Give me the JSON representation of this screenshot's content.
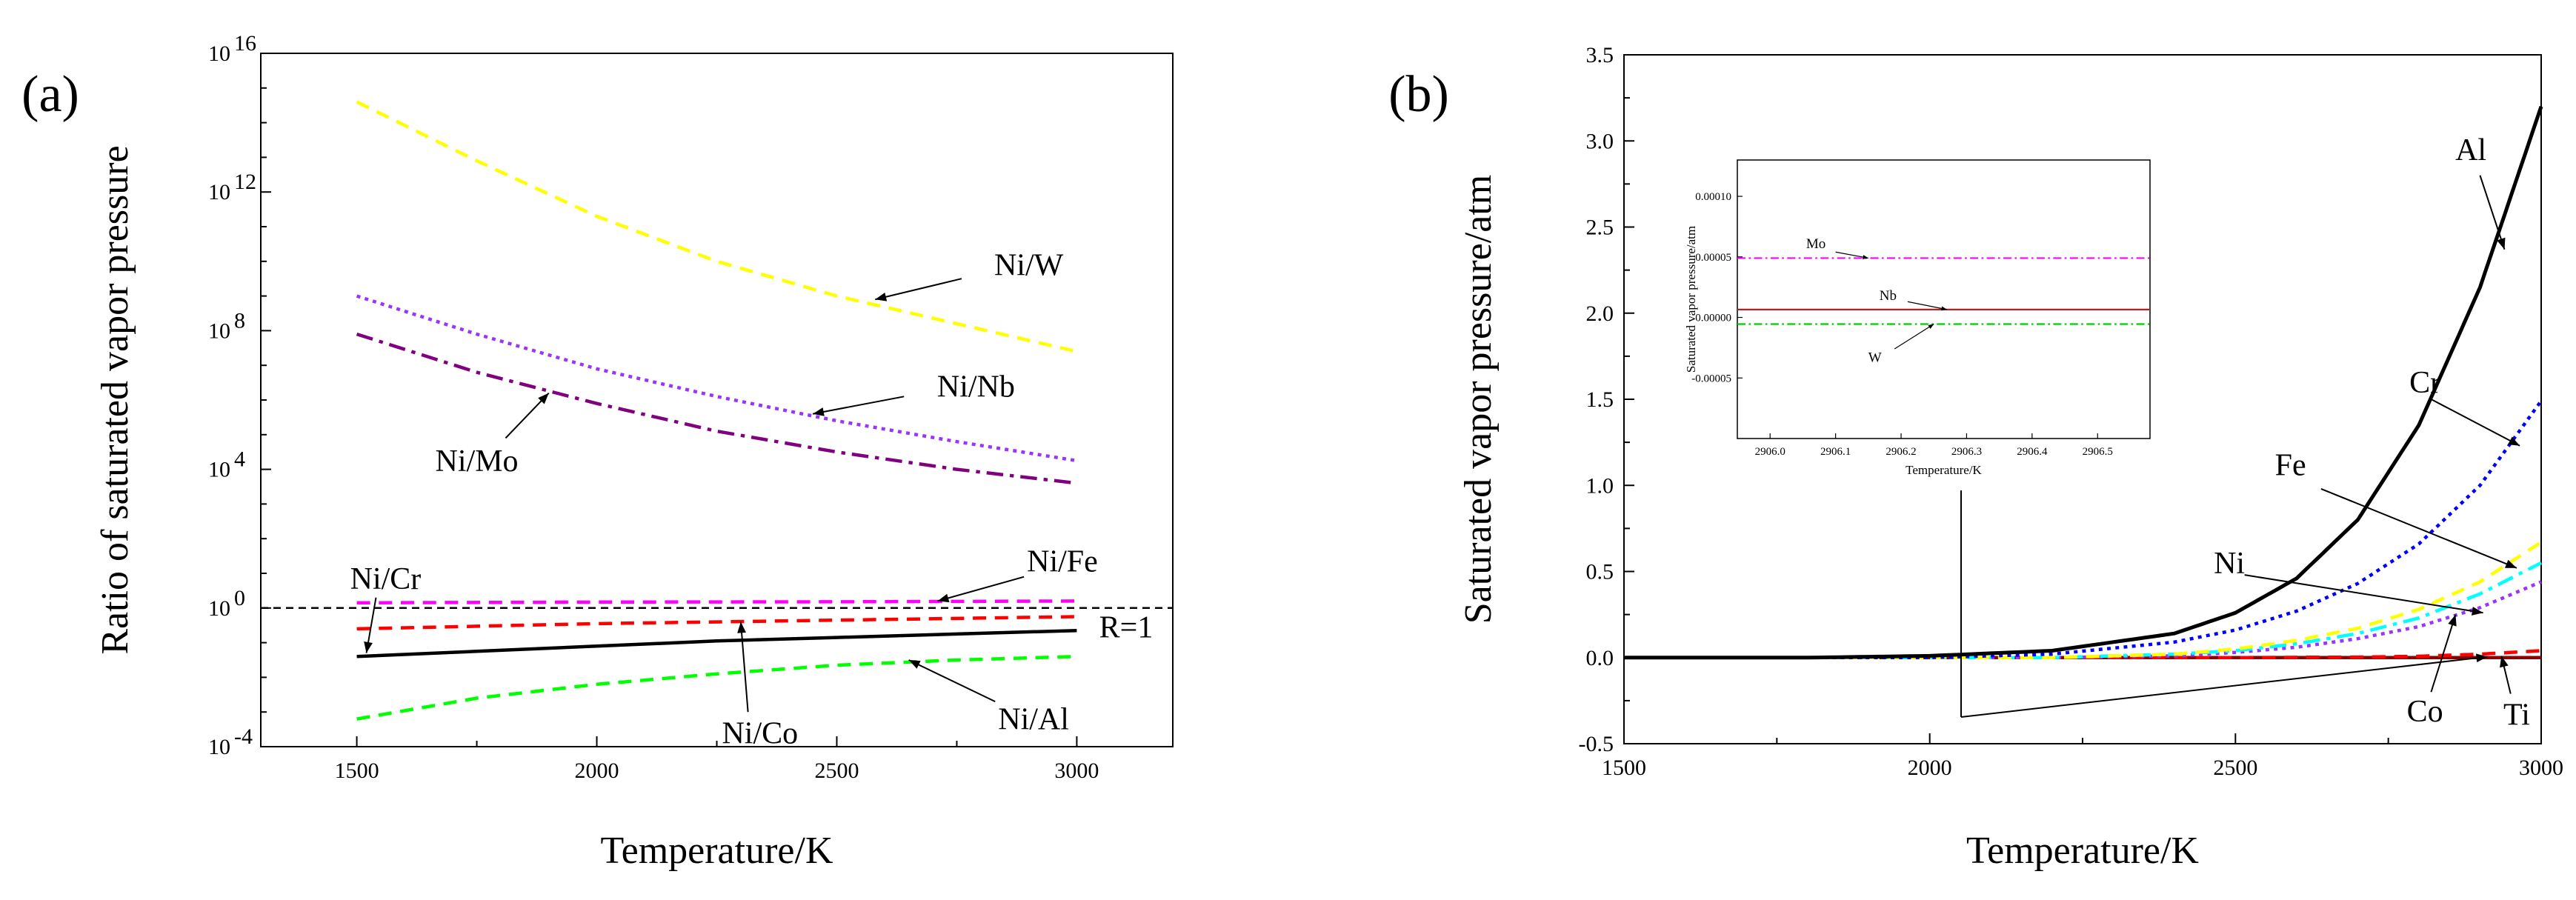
{
  "chart_data": [
    {
      "panel": "(a)",
      "type": "line",
      "xlabel": "Temperature/K",
      "ylabel": "Ratio of saturated vapor pressure",
      "yscale": "log",
      "xlim": [
        1300,
        3200
      ],
      "ylim_exp": [
        -4,
        16
      ],
      "x_ticks": [
        1500,
        2000,
        2500,
        3000
      ],
      "y_ticks": [
        {
          "base": "10",
          "exp": "-4",
          "value": -4
        },
        {
          "base": "10",
          "exp": "0",
          "value": 0
        },
        {
          "base": "10",
          "exp": "4",
          "value": 4
        },
        {
          "base": "10",
          "exp": "8",
          "value": 8
        },
        {
          "base": "10",
          "exp": "12",
          "value": 12
        },
        {
          "base": "10",
          "exp": "16",
          "value": 16
        }
      ],
      "reference_line": {
        "label": "R=1",
        "log10_value": 0
      },
      "series": [
        {
          "name": "Ni/W",
          "color": "#ffff00",
          "dash": "dash",
          "x": [
            1500,
            1750,
            2000,
            2250,
            2500,
            2750,
            3000
          ],
          "log10_y": [
            14.6,
            12.9,
            11.3,
            10.0,
            9.0,
            8.2,
            7.4
          ]
        },
        {
          "name": "Ni/Nb",
          "color": "#9933ff",
          "dash": "dot",
          "x": [
            1500,
            1750,
            2000,
            2250,
            2500,
            2750,
            3000
          ],
          "log10_y": [
            9.0,
            7.9,
            6.9,
            6.1,
            5.4,
            4.8,
            4.25
          ]
        },
        {
          "name": "Ni/Mo",
          "color": "#800080",
          "dash": "dashdot",
          "x": [
            1500,
            1750,
            2000,
            2250,
            2500,
            2750,
            3000
          ],
          "log10_y": [
            7.9,
            6.8,
            5.9,
            5.1,
            4.5,
            4.0,
            3.6
          ]
        },
        {
          "name": "Ni/Fe",
          "color": "#ff00ff",
          "dash": "dash",
          "x": [
            1500,
            2000,
            2500,
            3000
          ],
          "log10_y": [
            0.15,
            0.17,
            0.18,
            0.2
          ]
        },
        {
          "name": "Ni/Co",
          "color": "#ff0000",
          "dash": "dash",
          "x": [
            1500,
            2000,
            2500,
            3000
          ],
          "log10_y": [
            -0.6,
            -0.45,
            -0.35,
            -0.25
          ]
        },
        {
          "name": "Ni/Cr",
          "color": "#000000",
          "dash": "solid",
          "x": [
            1500,
            1750,
            2000,
            2250,
            2500,
            2750,
            3000
          ],
          "log10_y": [
            -1.4,
            -1.25,
            -1.1,
            -0.95,
            -0.85,
            -0.75,
            -0.65
          ]
        },
        {
          "name": "Ni/Al",
          "color": "#00ff00",
          "dash": "dash",
          "x": [
            1500,
            1750,
            2000,
            2250,
            2500,
            2750,
            3000
          ],
          "log10_y": [
            -3.2,
            -2.6,
            -2.2,
            -1.9,
            -1.65,
            -1.5,
            -1.4
          ]
        }
      ],
      "annotations": [
        {
          "text": "Ni/W",
          "target": [
            2580,
            8.9
          ]
        },
        {
          "text": "Ni/Nb",
          "target": [
            2450,
            5.6
          ]
        },
        {
          "text": "Ni/Mo",
          "target": [
            1900,
            6.2
          ]
        },
        {
          "text": "Ni/Cr",
          "target": [
            1520,
            -1.3
          ]
        },
        {
          "text": "Ni/Fe",
          "target": [
            2710,
            0.2
          ]
        },
        {
          "text": "Ni/Co",
          "target": [
            2300,
            -0.4
          ]
        },
        {
          "text": "Ni/Al",
          "target": [
            2650,
            -1.5
          ]
        }
      ]
    },
    {
      "panel": "(b)",
      "type": "line",
      "xlabel": "Temperature/K",
      "ylabel": "Saturated vapor pressure/atm",
      "xlim": [
        1500,
        3000
      ],
      "ylim": [
        -0.5,
        3.5
      ],
      "x_ticks": [
        1500,
        2000,
        2500,
        3000
      ],
      "y_ticks": [
        -0.5,
        0.0,
        0.5,
        1.0,
        1.5,
        2.0,
        2.5,
        3.0,
        3.5
      ],
      "y_tick_labels": [
        "-0.5",
        "0.0",
        "0.5",
        "1.0",
        "1.5",
        "2.0",
        "2.5",
        "3.0",
        "3.5"
      ],
      "series": [
        {
          "name": "Al",
          "color": "#000000",
          "dash": "solid",
          "x": [
            1500,
            1800,
            2000,
            2200,
            2400,
            2500,
            2600,
            2700,
            2800,
            2900,
            3000
          ],
          "y": [
            0.0,
            0.0,
            0.01,
            0.04,
            0.14,
            0.26,
            0.46,
            0.8,
            1.35,
            2.15,
            3.2
          ]
        },
        {
          "name": "Cr",
          "color": "#0000ff",
          "dash": "dot",
          "x": [
            1500,
            2000,
            2200,
            2400,
            2500,
            2600,
            2700,
            2800,
            2900,
            3000
          ],
          "y": [
            0.0,
            0.0,
            0.02,
            0.09,
            0.16,
            0.27,
            0.43,
            0.66,
            1.0,
            1.49
          ]
        },
        {
          "name": "Fe",
          "color": "#ffff00",
          "dash": "dash",
          "x": [
            1500,
            2200,
            2400,
            2500,
            2600,
            2700,
            2800,
            2900,
            3000
          ],
          "y": [
            0.0,
            0.0,
            0.02,
            0.05,
            0.1,
            0.17,
            0.28,
            0.44,
            0.67
          ]
        },
        {
          "name": "Ni",
          "color": "#00ffff",
          "dash": "dashdot",
          "x": [
            1500,
            2200,
            2400,
            2500,
            2600,
            2700,
            2800,
            2900,
            3000
          ],
          "y": [
            0.0,
            0.0,
            0.02,
            0.04,
            0.08,
            0.14,
            0.23,
            0.37,
            0.55
          ]
        },
        {
          "name": "Co",
          "color": "#9933ff",
          "dash": "dot",
          "x": [
            1500,
            2200,
            2400,
            2500,
            2600,
            2700,
            2800,
            2900,
            3000
          ],
          "y": [
            0.0,
            0.0,
            0.01,
            0.03,
            0.06,
            0.11,
            0.18,
            0.29,
            0.44
          ]
        },
        {
          "name": "Ti",
          "color": "#ff0000",
          "dash": "dash",
          "x": [
            1500,
            2500,
            2700,
            2800,
            2900,
            3000
          ],
          "y": [
            0.0,
            0.0,
            0.003,
            0.008,
            0.02,
            0.04
          ]
        },
        {
          "name": "Mo/Nb/W",
          "color": "#8b0000",
          "dash": "solid",
          "x": [
            1500,
            3000
          ],
          "y": [
            0.0,
            0.0
          ]
        }
      ],
      "annotations": [
        {
          "text": "Al",
          "target": [
            2940,
            2.37
          ]
        },
        {
          "text": "Cr",
          "target": [
            2965,
            1.23
          ]
        },
        {
          "text": "Fe",
          "target": [
            2960,
            0.52
          ]
        },
        {
          "text": "Ni",
          "target": [
            2905,
            0.26
          ]
        },
        {
          "text": "Co",
          "target": [
            2860,
            0.25
          ]
        },
        {
          "text": "Ti",
          "target": [
            2935,
            0.01
          ]
        }
      ],
      "inset": {
        "xlabel": "Temperature/K",
        "ylabel": "Saturated vapor pressure/atm",
        "xlim": [
          2905.95,
          2906.58
        ],
        "ylim": [
          -0.0001,
          0.00013
        ],
        "x_ticks": [
          2906.0,
          2906.1,
          2906.2,
          2906.3,
          2906.4,
          2906.5
        ],
        "x_tick_labels": [
          "2906.0",
          "2906.1",
          "2906.2",
          "2906.3",
          "2906.4",
          "2906.5"
        ],
        "y_ticks": [
          -5e-05,
          0.0,
          5e-05,
          0.0001
        ],
        "y_tick_labels": [
          "-0.00005",
          "0.00000",
          "0.00005",
          "0.00010"
        ],
        "series": [
          {
            "name": "Mo",
            "color": "#ff00ff",
            "dash": "dashdot",
            "y": 4.9e-05
          },
          {
            "name": "Nb",
            "color": "#b22222",
            "dash": "solid",
            "y": 6.5e-06
          },
          {
            "name": "W",
            "color": "#00cc00",
            "dash": "dashdot",
            "y": -5.5e-06
          }
        ],
        "annotations": [
          {
            "text": "Mo",
            "target": [
              2906.15,
              4.9e-05
            ]
          },
          {
            "text": "Nb",
            "target": [
              2906.27,
              6.5e-06
            ]
          },
          {
            "text": "W",
            "target": [
              2906.25,
              -5.5e-06
            ]
          }
        ],
        "zoom_point": [
          2050,
          0.0
        ]
      }
    }
  ]
}
